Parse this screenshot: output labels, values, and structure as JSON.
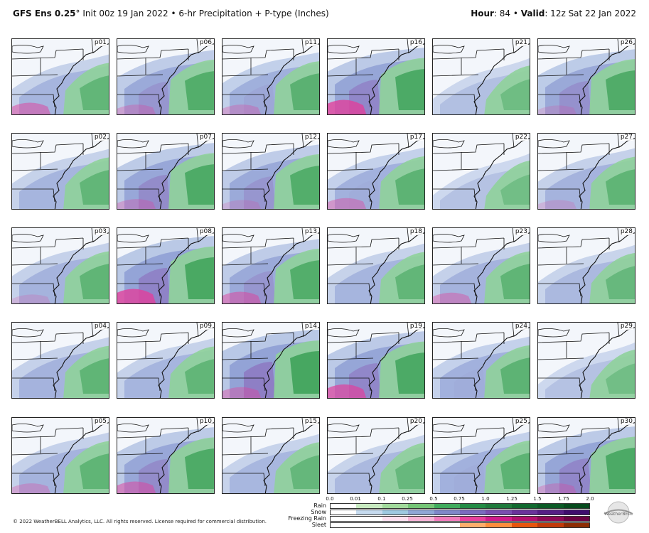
{
  "header": {
    "model": "GFS Ens 0.25",
    "degree": "°",
    "init_text": " Init 00z 19 Jan 2022 • 6-hr Precipitation + P-type (Inches)",
    "hour_label": "Hour",
    "hour_value": ": 84 • ",
    "valid_label": "Valid",
    "valid_value": ": 12z Sat 22 Jan 2022"
  },
  "panels": [
    {
      "label": "p01",
      "intensity": 0.45,
      "pink": 0.5
    },
    {
      "label": "p06",
      "intensity": 0.75,
      "pink": 0.3
    },
    {
      "label": "p11",
      "intensity": 0.6,
      "pink": 0.3
    },
    {
      "label": "p16",
      "intensity": 0.9,
      "pink": 0.8
    },
    {
      "label": "p21",
      "intensity": 0.2,
      "pink": 0.0
    },
    {
      "label": "p26",
      "intensity": 0.8,
      "pink": 0.2
    },
    {
      "label": "p02",
      "intensity": 0.45,
      "pink": 0.0
    },
    {
      "label": "p07",
      "intensity": 0.85,
      "pink": 0.3
    },
    {
      "label": "p12",
      "intensity": 0.75,
      "pink": 0.2
    },
    {
      "label": "p17",
      "intensity": 0.55,
      "pink": 0.4
    },
    {
      "label": "p22",
      "intensity": 0.15,
      "pink": 0.0
    },
    {
      "label": "p27",
      "intensity": 0.5,
      "pink": 0.2
    },
    {
      "label": "p03",
      "intensity": 0.5,
      "pink": 0.2
    },
    {
      "label": "p08",
      "intensity": 0.95,
      "pink": 0.8
    },
    {
      "label": "p13",
      "intensity": 0.75,
      "pink": 0.5
    },
    {
      "label": "p18",
      "intensity": 0.45,
      "pink": 0.0
    },
    {
      "label": "p23",
      "intensity": 0.5,
      "pink": 0.4
    },
    {
      "label": "p28",
      "intensity": 0.35,
      "pink": 0.0
    },
    {
      "label": "p04",
      "intensity": 0.5,
      "pink": 0.0
    },
    {
      "label": "p09",
      "intensity": 0.45,
      "pink": 0.0
    },
    {
      "label": "p14",
      "intensity": 1.0,
      "pink": 0.4
    },
    {
      "label": "p19",
      "intensity": 0.9,
      "pink": 0.7
    },
    {
      "label": "p24",
      "intensity": 0.55,
      "pink": 0.0
    },
    {
      "label": "p29",
      "intensity": 0.15,
      "pink": 0.0
    },
    {
      "label": "p05",
      "intensity": 0.5,
      "pink": 0.3
    },
    {
      "label": "p10",
      "intensity": 0.85,
      "pink": 0.5
    },
    {
      "label": "p15",
      "intensity": 0.4,
      "pink": 0.0
    },
    {
      "label": "p20",
      "intensity": 0.35,
      "pink": 0.0
    },
    {
      "label": "p25",
      "intensity": 0.55,
      "pink": 0.0
    },
    {
      "label": "p30",
      "intensity": 0.9,
      "pink": 0.3
    }
  ],
  "legend": {
    "ticks": [
      "0.0",
      "0.01",
      "0.1",
      "0.25",
      "0.5",
      "0.75",
      "1.0",
      "1.25",
      "1.5",
      "1.75",
      "2.0"
    ],
    "rows": [
      {
        "label": "Rain",
        "colors": [
          "#ffffff",
          "#c7e9c0",
          "#a1d99b",
          "#74c476",
          "#41ab5d",
          "#238b45",
          "#1f7a3c",
          "#11692f",
          "#0b5a26",
          "#064a1d"
        ]
      },
      {
        "label": "Snow",
        "colors": [
          "#ffffff",
          "#c6dbef",
          "#9ecae1",
          "#8fa7d6",
          "#7f88c9",
          "#7b6bbf",
          "#7a4fb0",
          "#6a339b",
          "#561f86",
          "#3f0d6e"
        ]
      },
      {
        "label": "Freezing Rain",
        "colors": [
          "#ffffff",
          "#ffffff",
          "#fde0ef",
          "#f6b3d6",
          "#f07bbb",
          "#e8409c",
          "#d01c8b",
          "#b3116f",
          "#8e0a58",
          "#6b0343"
        ]
      },
      {
        "label": "Sleet",
        "colors": [
          "#ffffff",
          "#ffffff",
          "#ffffff",
          "#ffffff",
          "#ffffff",
          "#fdae6b",
          "#fd8d3c",
          "#e6550d",
          "#c03a0a",
          "#8c2d04"
        ]
      }
    ]
  },
  "footer": "© 2022 WeatherBELL Analytics, LLC. All rights reserved. License required for commercial distribution.",
  "logo_text": "WeatherBELL"
}
